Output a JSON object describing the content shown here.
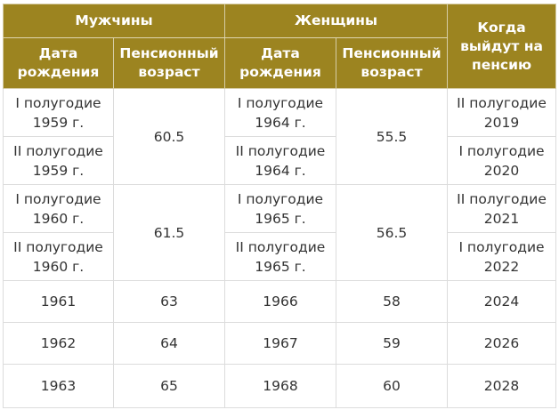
{
  "header": {
    "men": "Мужчины",
    "women": "Женщины",
    "when": "Когда выйдут на пенсию",
    "birth_date": "Дата рождения",
    "pension_age": "Пенсионный возраст"
  },
  "rows": [
    {
      "men_birth": "I полугодие 1959 г.",
      "men_age": "60.5",
      "women_birth": "I полугодие 1964 г.",
      "women_age": "55.5",
      "retire": "II полугодие 2019"
    },
    {
      "men_birth": "II полугодие 1959 г.",
      "women_birth": "II полугодие 1964 г.",
      "retire": "I полугодие 2020"
    },
    {
      "men_birth": "I полугодие 1960 г.",
      "men_age": "61.5",
      "women_birth": "I полугодие 1965 г.",
      "women_age": "56.5",
      "retire": "II полугодие 2021"
    },
    {
      "men_birth": "II полугодие 1960 г.",
      "women_birth": "II полугодие 1965 г.",
      "retire": "I полугодие 2022"
    },
    {
      "men_birth": "1961",
      "men_age": "63",
      "women_birth": "1966",
      "women_age": "58",
      "retire": "2024"
    },
    {
      "men_birth": "1962",
      "men_age": "64",
      "women_birth": "1967",
      "women_age": "59",
      "retire": "2026"
    },
    {
      "men_birth": "1963",
      "men_age": "65",
      "women_birth": "1968",
      "women_age": "60",
      "retire": "2028"
    }
  ]
}
